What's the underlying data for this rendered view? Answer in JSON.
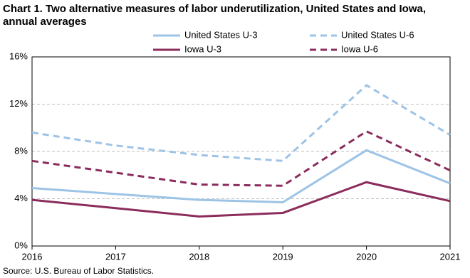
{
  "chart_data": {
    "type": "line",
    "title": "Chart 1. Two alternative measures of labor underutilization, United States and Iowa, annual averages",
    "source": "Source: U.S. Bureau of Labor Statistics.",
    "x": [
      2016,
      2017,
      2018,
      2019,
      2020,
      2021
    ],
    "xlim": [
      2016,
      2021
    ],
    "xticks": [
      2016,
      2017,
      2018,
      2019,
      2020,
      2021
    ],
    "ylim": [
      0,
      16
    ],
    "yticks": [
      {
        "value": 0,
        "label": "0%"
      },
      {
        "value": 4,
        "label": "4%"
      },
      {
        "value": 8,
        "label": "8%"
      },
      {
        "value": 12,
        "label": "12%"
      },
      {
        "value": 16,
        "label": "16%"
      }
    ],
    "grid": true,
    "series": [
      {
        "name": "United States U-3",
        "color": "#9dc3e6",
        "style": "solid",
        "values": [
          4.9,
          4.4,
          3.9,
          3.7,
          8.1,
          5.3
        ]
      },
      {
        "name": "United States U-6",
        "color": "#9dc3e6",
        "style": "dashed",
        "values": [
          9.6,
          8.5,
          7.7,
          7.2,
          13.6,
          9.4
        ]
      },
      {
        "name": "Iowa U-3",
        "color": "#8b2c5c",
        "style": "solid",
        "values": [
          3.9,
          3.2,
          2.5,
          2.8,
          5.4,
          3.8
        ]
      },
      {
        "name": "Iowa U-6",
        "color": "#8b2c5c",
        "style": "dashed",
        "values": [
          7.2,
          6.2,
          5.2,
          5.1,
          9.7,
          6.4
        ]
      }
    ]
  }
}
